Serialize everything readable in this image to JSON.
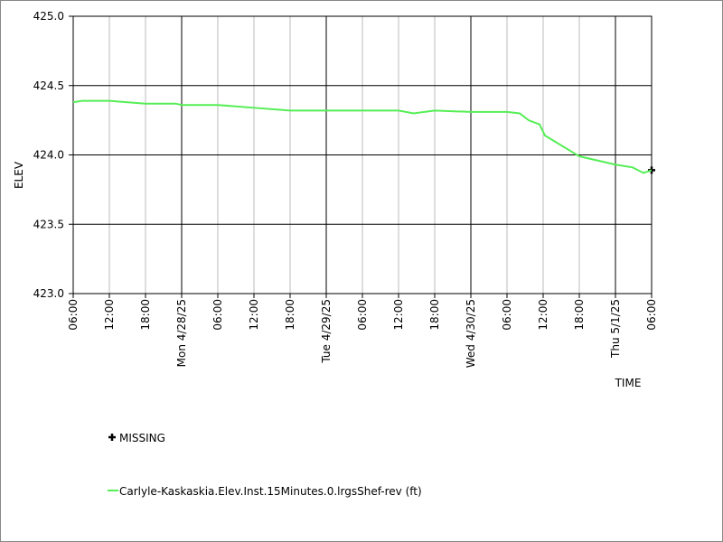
{
  "chart_data": {
    "type": "line",
    "y_label": "ELEV",
    "x_label": "TIME",
    "xlim": [
      "2025-04-27T06:00",
      "2025-05-01T06:00"
    ],
    "xticks": [
      {
        "value": "2025-04-27T06:00",
        "label": "06:00"
      },
      {
        "value": "2025-04-27T12:00",
        "label": "12:00"
      },
      {
        "value": "2025-04-27T18:00",
        "label": "18:00"
      },
      {
        "value": "2025-04-28T00:00",
        "label": "Mon 4/28/25"
      },
      {
        "value": "2025-04-28T06:00",
        "label": "06:00"
      },
      {
        "value": "2025-04-28T12:00",
        "label": "12:00"
      },
      {
        "value": "2025-04-28T18:00",
        "label": "18:00"
      },
      {
        "value": "2025-04-29T00:00",
        "label": "Tue 4/29/25"
      },
      {
        "value": "2025-04-29T06:00",
        "label": "06:00"
      },
      {
        "value": "2025-04-29T12:00",
        "label": "12:00"
      },
      {
        "value": "2025-04-29T18:00",
        "label": "18:00"
      },
      {
        "value": "2025-04-30T00:00",
        "label": "Wed 4/30/25"
      },
      {
        "value": "2025-04-30T06:00",
        "label": "06:00"
      },
      {
        "value": "2025-04-30T12:00",
        "label": "12:00"
      },
      {
        "value": "2025-04-30T18:00",
        "label": "18:00"
      },
      {
        "value": "2025-05-01T00:00",
        "label": "Thu 5/1/25"
      },
      {
        "value": "2025-05-01T06:00",
        "label": "06:00"
      }
    ],
    "ylim": [
      423.0,
      425.0
    ],
    "yticks": [
      {
        "value": 423.0,
        "label": "423.0"
      },
      {
        "value": 423.5,
        "label": "423.5"
      },
      {
        "value": 424.0,
        "label": "424.0"
      },
      {
        "value": 424.5,
        "label": "424.5"
      },
      {
        "value": 425.0,
        "label": "425.0"
      }
    ],
    "grid": true,
    "series": [
      {
        "name": "MISSING",
        "color": "#000000",
        "marker": "+",
        "x": [
          "2025-05-01T06:00"
        ],
        "values": [
          423.89
        ]
      },
      {
        "name": "Carlyle-Kaskaskia.Elev.Inst.15Minutes.0.lrgsShef-rev (ft)",
        "color": "#55ee55",
        "x": [
          "2025-04-27T06:00",
          "2025-04-27T07:30",
          "2025-04-27T12:00",
          "2025-04-27T18:00",
          "2025-04-27T23:00",
          "2025-04-28T00:00",
          "2025-04-28T06:00",
          "2025-04-28T12:00",
          "2025-04-28T18:00",
          "2025-04-29T00:00",
          "2025-04-29T06:00",
          "2025-04-29T12:00",
          "2025-04-29T14:30",
          "2025-04-29T18:00",
          "2025-04-30T00:00",
          "2025-04-30T06:00",
          "2025-04-30T08:06",
          "2025-04-30T09:36",
          "2025-04-30T11:24",
          "2025-04-30T12:18",
          "2025-04-30T18:00",
          "2025-05-01T00:00",
          "2025-05-01T02:51",
          "2025-05-01T04:39",
          "2025-05-01T06:00"
        ],
        "values": [
          424.38,
          424.39,
          424.39,
          424.37,
          424.37,
          424.36,
          424.36,
          424.34,
          424.32,
          424.32,
          424.32,
          424.32,
          424.3,
          424.32,
          424.31,
          424.31,
          424.3,
          424.25,
          424.22,
          424.14,
          423.99,
          423.93,
          423.91,
          423.87,
          423.89
        ]
      }
    ]
  }
}
